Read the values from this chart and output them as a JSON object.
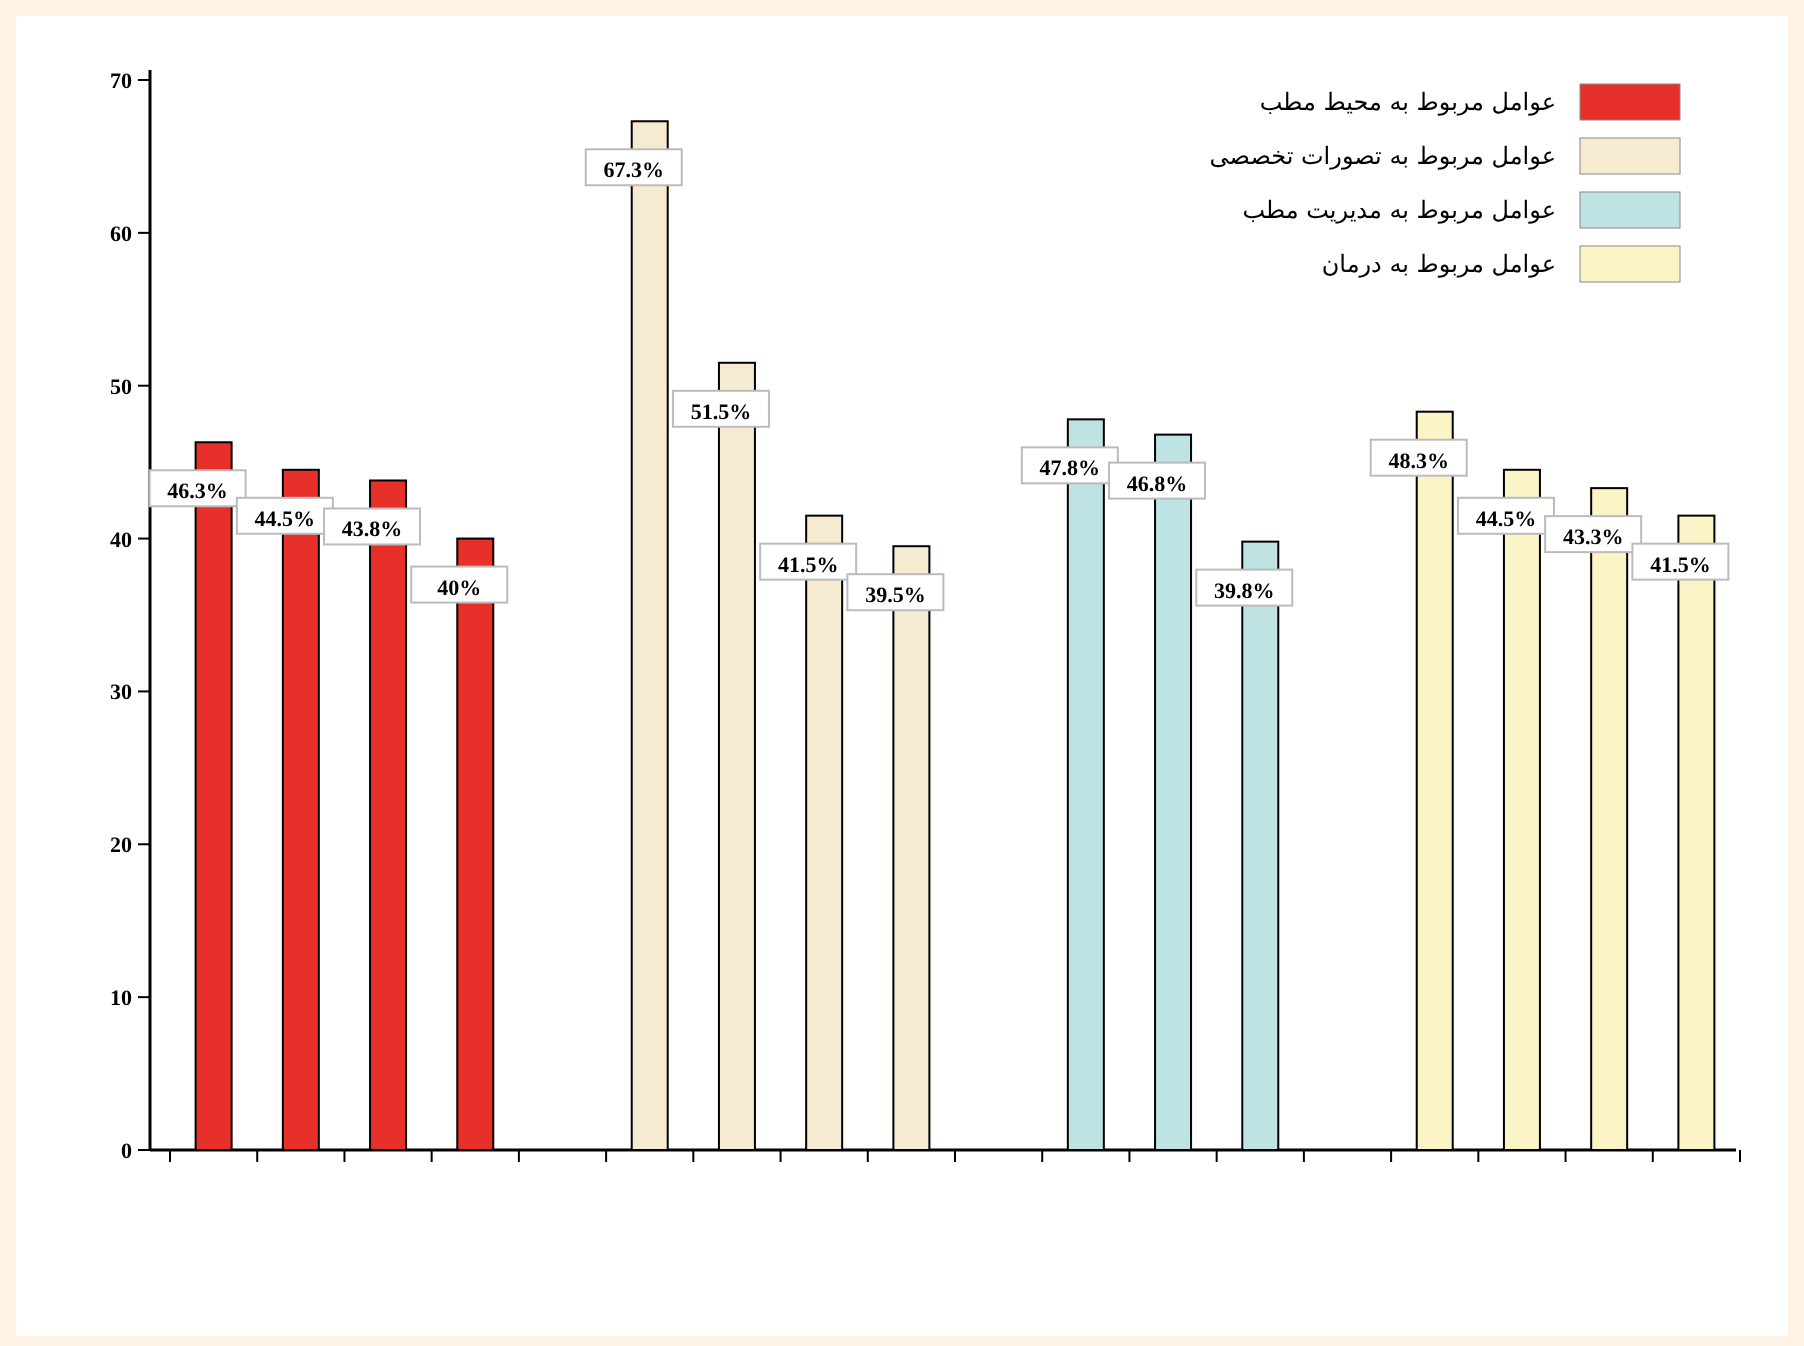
{
  "chart_data": {
    "type": "bar",
    "categories": [
      null,
      null,
      null,
      null,
      null,
      null,
      null,
      null,
      null,
      null,
      null,
      null,
      null,
      null,
      null,
      null,
      null,
      null
    ],
    "series": [
      {
        "name": "عوامل مربوط به محیط مطب",
        "color": "#e8302a",
        "values": [
          46.3,
          44.5,
          43.8,
          40,
          null,
          null,
          null,
          null,
          null,
          null,
          null,
          null,
          null,
          null,
          null,
          null,
          null,
          null
        ],
        "value_labels": [
          "46.3%",
          "44.5%",
          "43.8%",
          "40%",
          null,
          null,
          null,
          null,
          null,
          null,
          null,
          null,
          null,
          null,
          null,
          null,
          null,
          null
        ]
      },
      {
        "name": "عوامل مربوط به تصورات تخصصی",
        "color": "#f6ead0",
        "values": [
          null,
          null,
          null,
          null,
          null,
          67.3,
          51.5,
          41.5,
          39.5,
          null,
          null,
          null,
          null,
          null,
          null,
          null,
          null,
          null
        ],
        "value_labels": [
          null,
          null,
          null,
          null,
          null,
          "67.3%",
          "51.5%",
          "41.5%",
          "39.5%",
          null,
          null,
          null,
          null,
          null,
          null,
          null,
          null,
          null
        ]
      },
      {
        "name": "عوامل مربوط به مدیریت مطب",
        "color": "#bfe3e3",
        "values": [
          null,
          null,
          null,
          null,
          null,
          null,
          null,
          null,
          null,
          null,
          47.8,
          46.8,
          39.8,
          null,
          null,
          null,
          null,
          null
        ],
        "value_labels": [
          null,
          null,
          null,
          null,
          null,
          null,
          null,
          null,
          null,
          null,
          "47.8%",
          "46.8%",
          "39.8%",
          null,
          null,
          null,
          null,
          null
        ]
      },
      {
        "name": "عوامل مربوط به درمان",
        "color": "#fbf4c6",
        "values": [
          null,
          null,
          null,
          null,
          null,
          null,
          null,
          null,
          null,
          null,
          null,
          null,
          null,
          null,
          48.3,
          44.5,
          43.3,
          41.5
        ],
        "value_labels": [
          null,
          null,
          null,
          null,
          null,
          null,
          null,
          null,
          null,
          null,
          null,
          null,
          null,
          null,
          "48.3%",
          "44.5%",
          "43.3%",
          "41.5%"
        ]
      }
    ],
    "ylim": [
      0,
      70
    ],
    "yticks": [
      0,
      10,
      20,
      30,
      40,
      50,
      60,
      70
    ],
    "grid": false,
    "legend": "top right"
  }
}
